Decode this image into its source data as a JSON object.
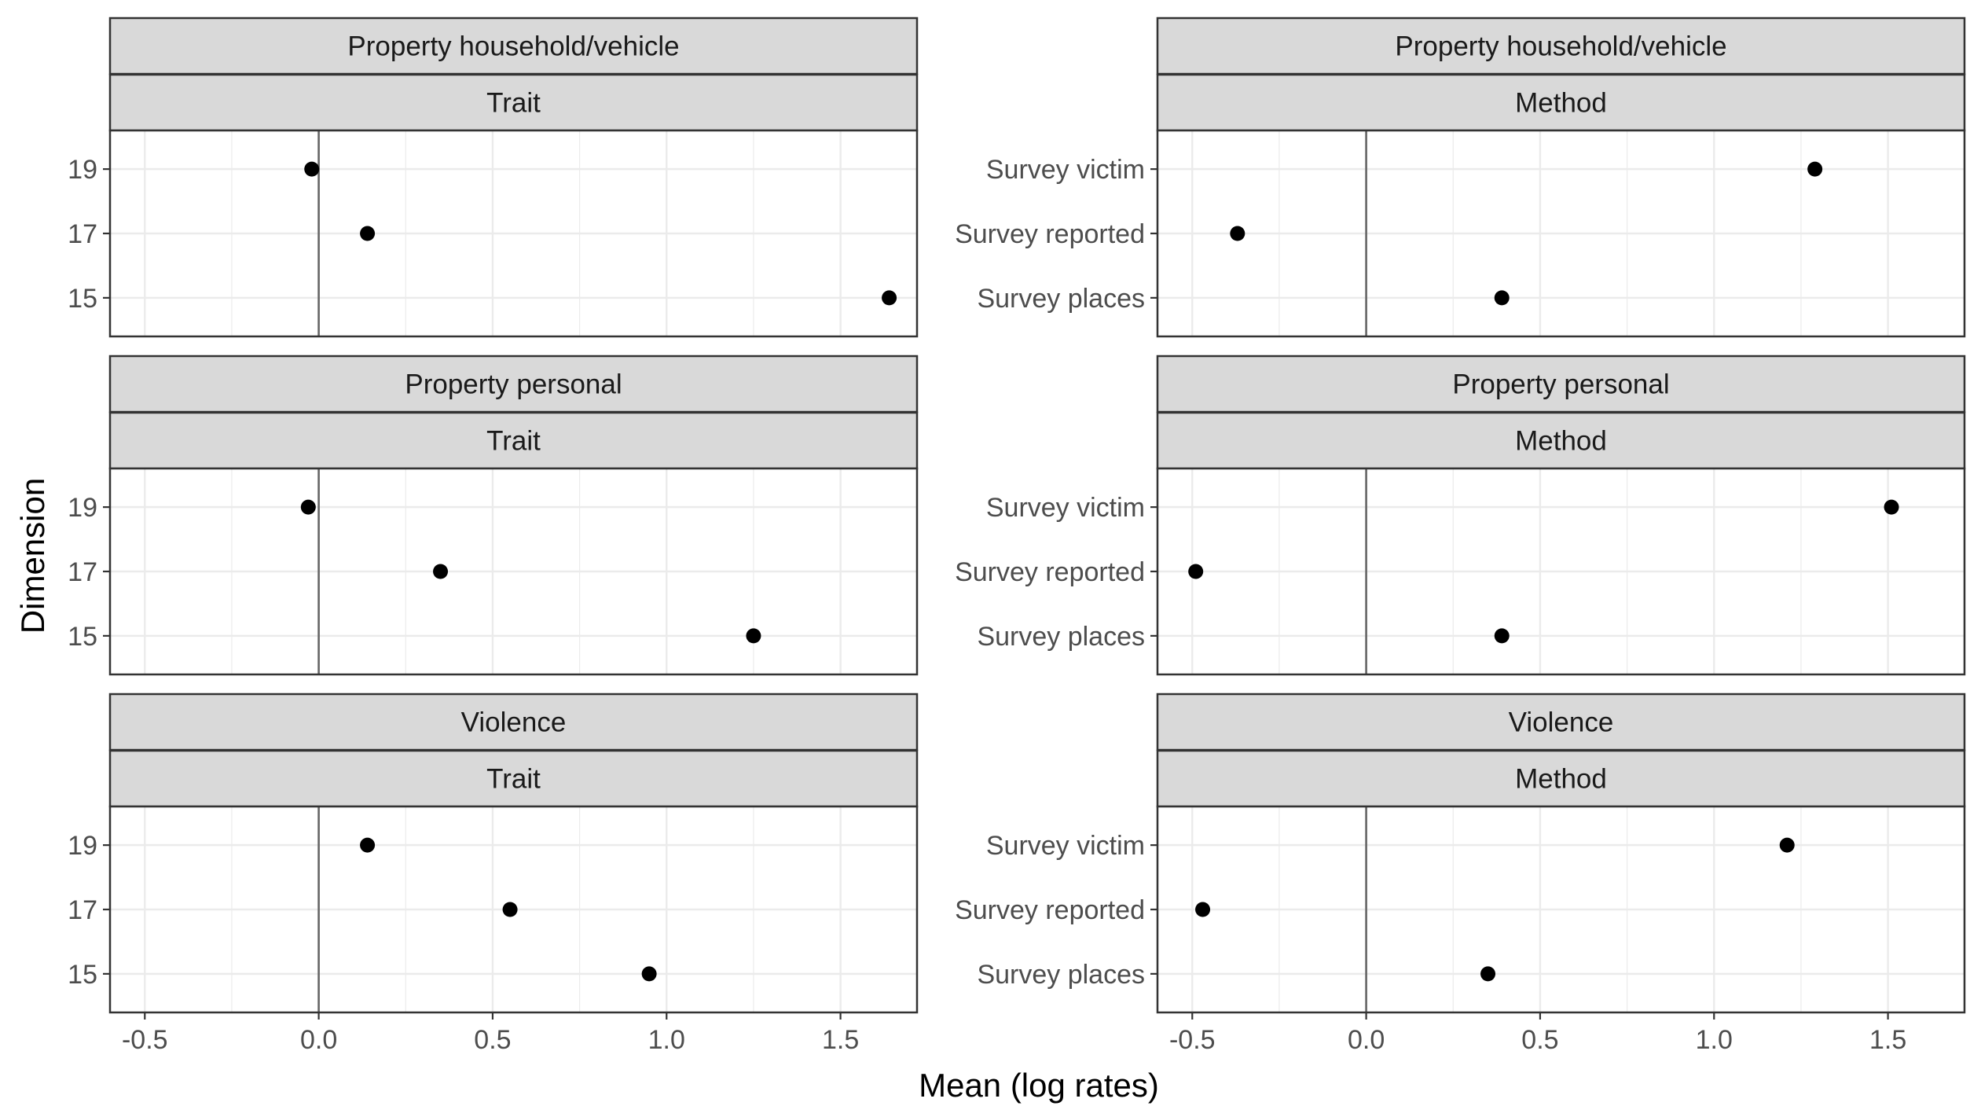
{
  "chart_data": {
    "type": "scatter",
    "xlabel": "Mean (log rates)",
    "ylabel": "Dimension",
    "xlim": [
      -0.6,
      1.72
    ],
    "x_ticks": [
      "-0.5",
      "0.0",
      "0.5",
      "1.0",
      "1.5"
    ],
    "reference_line_x": 0,
    "grid": true,
    "colors": {
      "point": "#000000",
      "strip_fill": "#d9d9d9",
      "panel_border": "#333333",
      "grid_major": "#ebebeb",
      "reference_line": "#666666"
    },
    "panels": [
      {
        "crime": "Property household/vehicle",
        "facet": "Trait",
        "categories": [
          "15",
          "17",
          "19"
        ],
        "points": [
          {
            "y": "19",
            "x": -0.02
          },
          {
            "y": "17",
            "x": 0.14
          },
          {
            "y": "15",
            "x": 1.64
          }
        ]
      },
      {
        "crime": "Property household/vehicle",
        "facet": "Method",
        "categories": [
          "Survey places",
          "Survey reported",
          "Survey victim"
        ],
        "points": [
          {
            "y": "Survey victim",
            "x": 1.29
          },
          {
            "y": "Survey reported",
            "x": -0.37
          },
          {
            "y": "Survey places",
            "x": 0.39
          }
        ]
      },
      {
        "crime": "Property personal",
        "facet": "Trait",
        "categories": [
          "15",
          "17",
          "19"
        ],
        "points": [
          {
            "y": "19",
            "x": -0.03
          },
          {
            "y": "17",
            "x": 0.35
          },
          {
            "y": "15",
            "x": 1.25
          }
        ]
      },
      {
        "crime": "Property personal",
        "facet": "Method",
        "categories": [
          "Survey places",
          "Survey reported",
          "Survey victim"
        ],
        "points": [
          {
            "y": "Survey victim",
            "x": 1.51
          },
          {
            "y": "Survey reported",
            "x": -0.49
          },
          {
            "y": "Survey places",
            "x": 0.39
          }
        ]
      },
      {
        "crime": "Violence",
        "facet": "Trait",
        "categories": [
          "15",
          "17",
          "19"
        ],
        "points": [
          {
            "y": "19",
            "x": 0.14
          },
          {
            "y": "17",
            "x": 0.55
          },
          {
            "y": "15",
            "x": 0.95
          }
        ]
      },
      {
        "crime": "Violence",
        "facet": "Method",
        "categories": [
          "Survey places",
          "Survey reported",
          "Survey victim"
        ],
        "points": [
          {
            "y": "Survey victim",
            "x": 1.21
          },
          {
            "y": "Survey reported",
            "x": -0.47
          },
          {
            "y": "Survey places",
            "x": 0.35
          }
        ]
      }
    ]
  }
}
